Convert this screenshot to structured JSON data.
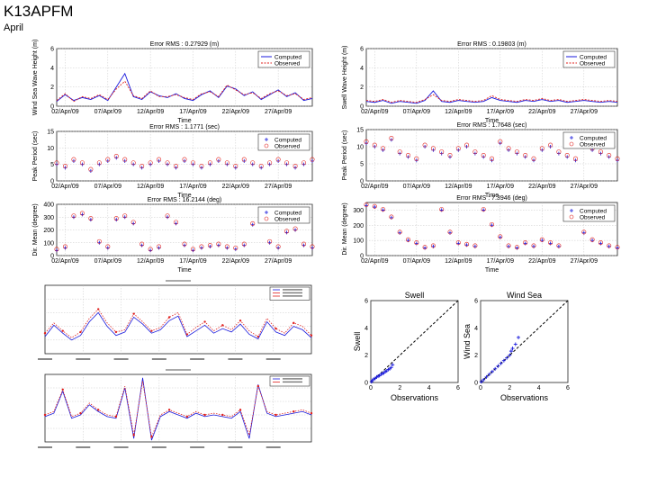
{
  "header": {
    "title": "K13APFM",
    "subtitle": "April"
  },
  "colors": {
    "computed": "#1a1adc",
    "observed": "#e0201e",
    "dashed_line": "#000000"
  },
  "chart_data": [
    {
      "id": "wind-sea-height",
      "type": "line",
      "title": "Error RMS : 0.27929 (m)",
      "ylabel": "Wind Sea Wave Height (m)",
      "xlabel": "Time",
      "ylim": [
        0,
        6
      ],
      "yticks": [
        0,
        2,
        4,
        6
      ],
      "x_range": [
        0,
        30
      ],
      "xtick_pos": [
        1,
        6,
        11,
        16,
        21,
        26
      ],
      "xtick_labels": [
        "02/Apr/09",
        "07/Apr/09",
        "12/Apr/09",
        "17/Apr/09",
        "22/Apr/09",
        "27/Apr/09"
      ],
      "legend": [
        "Computed",
        "Observed"
      ],
      "series_kind": "line",
      "x": [
        0,
        1,
        2,
        3,
        4,
        5,
        6,
        7,
        8,
        9,
        10,
        11,
        12,
        13,
        14,
        15,
        16,
        17,
        18,
        19,
        20,
        21,
        22,
        23,
        24,
        25,
        26,
        27,
        28,
        29,
        30
      ],
      "series": [
        {
          "name": "Computed",
          "values": [
            0.5,
            1.2,
            0.6,
            0.9,
            0.7,
            1.1,
            0.6,
            2.0,
            3.4,
            1.0,
            0.7,
            1.5,
            1.1,
            0.9,
            1.3,
            0.8,
            0.6,
            1.2,
            1.6,
            0.9,
            2.1,
            1.8,
            1.1,
            1.5,
            0.7,
            1.2,
            1.7,
            1.0,
            1.4,
            0.6,
            0.8
          ]
        },
        {
          "name": "Observed",
          "values": [
            0.6,
            1.3,
            0.5,
            1.0,
            0.8,
            1.2,
            0.7,
            1.8,
            2.6,
            1.1,
            0.8,
            1.6,
            1.0,
            1.0,
            1.2,
            0.9,
            0.7,
            1.3,
            1.5,
            1.0,
            2.2,
            1.7,
            1.2,
            1.4,
            0.8,
            1.3,
            1.6,
            1.1,
            1.3,
            0.7,
            0.9
          ]
        }
      ]
    },
    {
      "id": "swell-height",
      "type": "line",
      "title": "Error RMS : 0.19803 (m)",
      "ylabel": "Swell Wave Height (m)",
      "xlabel": "Time",
      "ylim": [
        0,
        6
      ],
      "yticks": [
        0,
        2,
        4,
        6
      ],
      "x_range": [
        0,
        30
      ],
      "xtick_pos": [
        1,
        6,
        11,
        16,
        21,
        26
      ],
      "xtick_labels": [
        "02/Apr/09",
        "07/Apr/09",
        "12/Apr/09",
        "17/Apr/09",
        "22/Apr/09",
        "27/Apr/09"
      ],
      "legend": [
        "Computed",
        "Observed"
      ],
      "series_kind": "line",
      "x": [
        0,
        1,
        2,
        3,
        4,
        5,
        6,
        7,
        8,
        9,
        10,
        11,
        12,
        13,
        14,
        15,
        16,
        17,
        18,
        19,
        20,
        21,
        22,
        23,
        24,
        25,
        26,
        27,
        28,
        29,
        30
      ],
      "series": [
        {
          "name": "Computed",
          "values": [
            0.5,
            0.4,
            0.6,
            0.3,
            0.5,
            0.4,
            0.3,
            0.6,
            1.6,
            0.5,
            0.4,
            0.6,
            0.5,
            0.4,
            0.5,
            0.9,
            0.6,
            0.5,
            0.4,
            0.6,
            0.5,
            0.7,
            0.5,
            0.6,
            0.4,
            0.5,
            0.6,
            0.5,
            0.4,
            0.5,
            0.4
          ]
        },
        {
          "name": "Observed",
          "values": [
            0.6,
            0.5,
            0.7,
            0.4,
            0.6,
            0.5,
            0.4,
            0.7,
            1.2,
            0.6,
            0.5,
            0.7,
            0.6,
            0.5,
            0.6,
            1.1,
            0.7,
            0.6,
            0.5,
            0.7,
            0.6,
            0.8,
            0.6,
            0.7,
            0.5,
            0.6,
            0.7,
            0.6,
            0.5,
            0.6,
            0.5
          ]
        }
      ]
    },
    {
      "id": "wind-sea-period",
      "type": "scatter",
      "title": "Error RMS : 1.1771 (sec)",
      "ylabel": "Peak Period (sec)",
      "xlabel": "Time",
      "ylim": [
        0,
        15
      ],
      "yticks": [
        0,
        5,
        10,
        15
      ],
      "x_range": [
        0,
        30
      ],
      "xtick_pos": [
        1,
        6,
        11,
        16,
        21,
        26
      ],
      "xtick_labels": [
        "02/Apr/09",
        "07/Apr/09",
        "12/Apr/09",
        "17/Apr/09",
        "22/Apr/09",
        "27/Apr/09"
      ],
      "legend": [
        "Computed",
        "Observed"
      ],
      "series_kind": "scatter",
      "x": [
        0,
        1,
        2,
        3,
        4,
        5,
        6,
        7,
        8,
        9,
        10,
        11,
        12,
        13,
        14,
        15,
        16,
        17,
        18,
        19,
        20,
        21,
        22,
        23,
        24,
        25,
        26,
        27,
        28,
        29,
        30
      ],
      "series": [
        {
          "name": "Computed",
          "values": [
            5,
            4,
            6,
            5,
            3,
            5,
            6,
            7,
            6,
            5,
            4,
            5,
            6,
            5,
            4,
            6,
            5,
            4,
            5,
            6,
            5,
            4,
            6,
            5,
            4,
            5,
            6,
            5,
            4,
            5,
            6
          ]
        },
        {
          "name": "Observed",
          "values": [
            5.5,
            4.5,
            6.5,
            5.5,
            3.5,
            5.5,
            6.5,
            7.5,
            6.5,
            5.5,
            4.5,
            5.5,
            6.5,
            5.5,
            4.5,
            6.5,
            5.5,
            4.5,
            5.5,
            6.5,
            5.5,
            4.5,
            6.5,
            5.5,
            4.5,
            5.5,
            6.5,
            5.5,
            4.5,
            5.5,
            6.5
          ]
        }
      ]
    },
    {
      "id": "swell-period",
      "type": "scatter",
      "title": "Error RMS : 1.7648 (sec)",
      "ylabel": "Peak Period (sec)",
      "xlabel": "Time",
      "ylim": [
        0,
        15
      ],
      "yticks": [
        0,
        5,
        10,
        15
      ],
      "x_range": [
        0,
        30
      ],
      "xtick_pos": [
        1,
        6,
        11,
        16,
        21,
        26
      ],
      "xtick_labels": [
        "02/Apr/09",
        "07/Apr/09",
        "12/Apr/09",
        "17/Apr/09",
        "22/Apr/09",
        "27/Apr/09"
      ],
      "legend": [
        "Computed",
        "Observed"
      ],
      "series_kind": "scatter",
      "x": [
        0,
        1,
        2,
        3,
        4,
        5,
        6,
        7,
        8,
        9,
        10,
        11,
        12,
        13,
        14,
        15,
        16,
        17,
        18,
        19,
        20,
        21,
        22,
        23,
        24,
        25,
        26,
        27,
        28,
        29,
        30
      ],
      "series": [
        {
          "name": "Computed",
          "values": [
            11,
            10,
            9,
            12,
            8,
            7,
            6,
            10,
            9,
            8,
            7,
            9,
            10,
            8,
            7,
            6,
            11,
            9,
            8,
            7,
            6,
            9,
            10,
            8,
            7,
            6,
            11,
            9,
            8,
            7,
            6
          ]
        },
        {
          "name": "Observed",
          "values": [
            11.5,
            10.5,
            9.5,
            12.5,
            8.5,
            7.5,
            6.5,
            10.5,
            9.5,
            8.5,
            7.5,
            9.5,
            10.5,
            8.5,
            7.5,
            6.5,
            11.5,
            9.5,
            8.5,
            7.5,
            6.5,
            9.5,
            10.5,
            8.5,
            7.5,
            6.5,
            11.5,
            9.5,
            8.5,
            7.5,
            6.5
          ]
        }
      ]
    },
    {
      "id": "wind-sea-direction",
      "type": "scatter",
      "title": "Error RMS : 16.2144 (deg)",
      "ylabel": "Dir. Mean (degree)",
      "xlabel": "Time",
      "ylim": [
        0,
        400
      ],
      "yticks": [
        0,
        100,
        200,
        300,
        400
      ],
      "x_range": [
        0,
        30
      ],
      "xtick_pos": [
        1,
        6,
        11,
        16,
        21,
        26
      ],
      "xtick_labels": [
        "02/Apr/09",
        "07/Apr/09",
        "12/Apr/09",
        "17/Apr/09",
        "22/Apr/09",
        "27/Apr/09"
      ],
      "legend": [
        "Computed",
        "Observed"
      ],
      "series_kind": "scatter",
      "x": [
        0,
        1,
        2,
        3,
        4,
        5,
        6,
        7,
        8,
        9,
        10,
        11,
        12,
        13,
        14,
        15,
        16,
        17,
        18,
        19,
        20,
        21,
        22,
        23,
        24,
        25,
        26,
        27,
        28,
        29,
        30
      ],
      "series": [
        {
          "name": "Computed",
          "values": [
            40,
            60,
            300,
            320,
            280,
            100,
            60,
            280,
            300,
            250,
            80,
            40,
            60,
            300,
            250,
            80,
            40,
            60,
            70,
            80,
            60,
            50,
            80,
            240,
            280,
            100,
            60,
            180,
            200,
            80,
            60
          ]
        },
        {
          "name": "Observed",
          "values": [
            50,
            70,
            310,
            330,
            290,
            110,
            70,
            290,
            310,
            260,
            90,
            50,
            70,
            310,
            260,
            90,
            50,
            70,
            80,
            90,
            70,
            60,
            90,
            250,
            290,
            110,
            70,
            190,
            210,
            90,
            70
          ]
        }
      ]
    },
    {
      "id": "swell-direction",
      "type": "scatter",
      "title": "Error RMS : 7.3946 (deg)",
      "ylabel": "Dir. Mean (degree)",
      "xlabel": "Time",
      "ylim": [
        0,
        350
      ],
      "yticks": [
        0,
        100,
        200,
        300
      ],
      "x_range": [
        0,
        30
      ],
      "xtick_pos": [
        1,
        6,
        11,
        16,
        21,
        26
      ],
      "xtick_labels": [
        "02/Apr/09",
        "07/Apr/09",
        "12/Apr/09",
        "17/Apr/09",
        "22/Apr/09",
        "27/Apr/09"
      ],
      "legend": [
        "Computed",
        "Observed"
      ],
      "series_kind": "scatter",
      "x": [
        0,
        1,
        2,
        3,
        4,
        5,
        6,
        7,
        8,
        9,
        10,
        11,
        12,
        13,
        14,
        15,
        16,
        17,
        18,
        19,
        20,
        21,
        22,
        23,
        24,
        25,
        26,
        27,
        28,
        29,
        30
      ],
      "series": [
        {
          "name": "Computed",
          "values": [
            330,
            320,
            300,
            250,
            150,
            100,
            80,
            50,
            60,
            300,
            150,
            80,
            70,
            60,
            300,
            200,
            120,
            60,
            50,
            80,
            60,
            100,
            80,
            60,
            300,
            250,
            150,
            100,
            80,
            60,
            50
          ]
        },
        {
          "name": "Observed",
          "values": [
            335,
            325,
            305,
            255,
            155,
            105,
            85,
            55,
            65,
            305,
            155,
            85,
            75,
            65,
            305,
            205,
            125,
            65,
            55,
            85,
            65,
            105,
            85,
            65,
            305,
            255,
            155,
            105,
            85,
            65,
            55
          ]
        }
      ]
    },
    {
      "id": "swell-qq",
      "type": "scatter",
      "title": "Swell",
      "ylabel": "Swell",
      "xlabel": "Observations",
      "xlim": [
        0,
        6
      ],
      "ylim": [
        0,
        6
      ],
      "xticks": [
        0,
        2,
        4,
        6
      ],
      "yticks": [
        0,
        2,
        4,
        6
      ],
      "x": [
        0.05,
        0.1,
        0.2,
        0.3,
        0.4,
        0.5,
        0.6,
        0.7,
        0.8,
        0.9,
        1.0,
        1.1,
        1.2,
        1.3,
        1.4,
        1.5
      ],
      "series": [
        {
          "name": "Swell",
          "values": [
            0.05,
            0.15,
            0.25,
            0.3,
            0.4,
            0.45,
            0.5,
            0.6,
            0.65,
            0.7,
            0.8,
            0.85,
            0.95,
            1.0,
            1.1,
            1.3
          ]
        }
      ]
    },
    {
      "id": "wind-sea-qq",
      "type": "scatter",
      "title": "Wind Sea",
      "ylabel": "Wind Sea",
      "xlabel": "Observations",
      "xlim": [
        0,
        6
      ],
      "ylim": [
        0,
        6
      ],
      "xticks": [
        0,
        2,
        4,
        6
      ],
      "yticks": [
        0,
        2,
        4,
        6
      ],
      "x": [
        0.05,
        0.2,
        0.4,
        0.6,
        0.8,
        1.0,
        1.2,
        1.4,
        1.6,
        1.8,
        2.0,
        2.1,
        2.2,
        2.4,
        2.6
      ],
      "series": [
        {
          "name": "Wind Sea",
          "values": [
            0.05,
            0.2,
            0.4,
            0.6,
            0.8,
            1.0,
            1.2,
            1.4,
            1.6,
            1.8,
            2.0,
            2.3,
            2.5,
            2.8,
            3.3
          ]
        }
      ]
    },
    {
      "id": "thumb-height",
      "type": "line",
      "x_range": [
        0,
        30
      ],
      "ylim": [
        0,
        6
      ],
      "legend_bars": 3,
      "x": [
        0,
        1,
        2,
        3,
        4,
        5,
        6,
        7,
        8,
        9,
        10,
        11,
        12,
        13,
        14,
        15,
        16,
        17,
        18,
        19,
        20,
        21,
        22,
        23,
        24,
        25,
        26,
        27,
        28,
        29,
        30
      ],
      "series": [
        {
          "name": "blue",
          "values": [
            1.5,
            2.5,
            1.8,
            1.2,
            1.6,
            2.8,
            3.6,
            2.4,
            1.6,
            1.9,
            3.2,
            2.6,
            1.8,
            2.1,
            2.9,
            3.3,
            1.5,
            2.0,
            2.5,
            1.8,
            2.2,
            1.9,
            2.6,
            1.7,
            1.3,
            2.8,
            1.9,
            1.6,
            2.4,
            2.1,
            1.4
          ]
        },
        {
          "name": "red",
          "values": [
            1.8,
            2.7,
            2.0,
            1.4,
            1.9,
            3.1,
            3.9,
            2.7,
            1.9,
            2.1,
            3.5,
            2.8,
            2.0,
            2.3,
            3.2,
            3.6,
            1.7,
            2.3,
            2.8,
            2.0,
            2.5,
            2.1,
            2.9,
            2.0,
            1.5,
            3.1,
            2.2,
            1.8,
            2.7,
            2.4,
            1.6
          ]
        }
      ]
    },
    {
      "id": "thumb-direction",
      "type": "line",
      "x_range": [
        0,
        30
      ],
      "ylim": [
        0,
        400
      ],
      "legend_bars": 2,
      "x": [
        0,
        1,
        2,
        3,
        4,
        5,
        6,
        7,
        8,
        9,
        10,
        11,
        12,
        13,
        14,
        15,
        16,
        17,
        18,
        19,
        20,
        21,
        22,
        23,
        24,
        25,
        26,
        27,
        28,
        29,
        30
      ],
      "series": [
        {
          "name": "blue",
          "values": [
            150,
            170,
            300,
            140,
            160,
            220,
            180,
            150,
            140,
            320,
            20,
            380,
            10,
            150,
            180,
            160,
            140,
            170,
            150,
            160,
            150,
            140,
            180,
            20,
            340,
            170,
            150,
            160,
            170,
            180,
            160
          ]
        },
        {
          "name": "red",
          "values": [
            160,
            180,
            310,
            150,
            170,
            230,
            190,
            160,
            150,
            330,
            40,
            360,
            30,
            160,
            190,
            170,
            150,
            180,
            160,
            170,
            160,
            150,
            190,
            40,
            330,
            180,
            160,
            170,
            180,
            190,
            170
          ]
        }
      ]
    }
  ]
}
